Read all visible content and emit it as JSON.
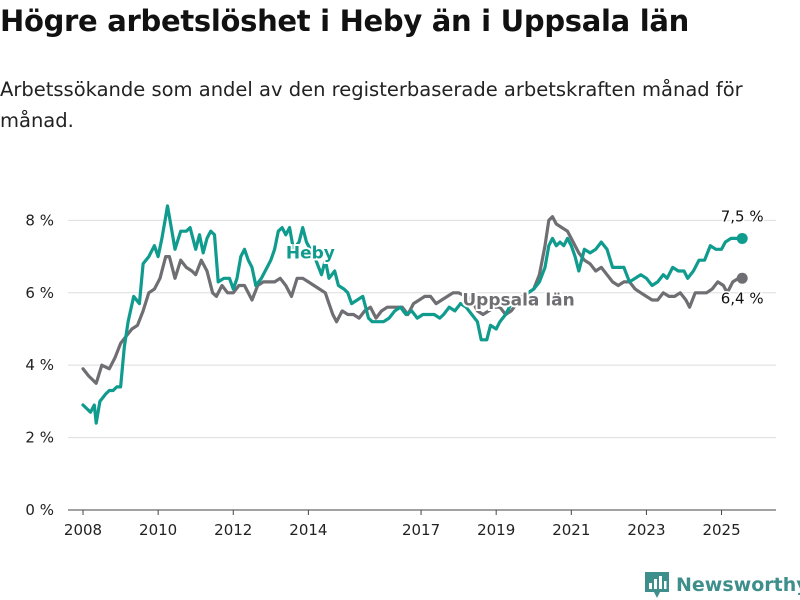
{
  "title": "Högre arbetslöshet i Heby än i Uppsala län",
  "subtitle": "Arbetssökande som andel av den registerbaserade arbetskraften månad för månad.",
  "brand": "Newsworthy",
  "colors": {
    "heby": "#0f9b8e",
    "uppsala": "#6e6e73",
    "grid": "#dddddd",
    "brand": "#3e8f8b"
  },
  "chart_data": {
    "type": "line",
    "ylim": [
      0,
      8.7
    ],
    "xlim": [
      2007.6,
      2026.45
    ],
    "y_ticks": [
      0,
      2,
      4,
      6,
      8
    ],
    "y_tick_labels": [
      "0 %",
      "2 %",
      "4 %",
      "6 %",
      "8 %"
    ],
    "x_ticks": [
      2008,
      2010,
      2012,
      2014,
      2017,
      2019,
      2021,
      2023,
      2025
    ],
    "x_tick_labels": [
      "2008",
      "2010",
      "2012",
      "2014",
      "2017",
      "2019",
      "2021",
      "2023",
      "2025"
    ],
    "series": [
      {
        "key": "heby",
        "name": "Heby",
        "end_label": "7,5 %",
        "points": [
          [
            2008.0,
            2.9
          ],
          [
            2008.1,
            2.8
          ],
          [
            2008.2,
            2.7
          ],
          [
            2008.3,
            2.9
          ],
          [
            2008.35,
            2.4
          ],
          [
            2008.45,
            3.0
          ],
          [
            2008.6,
            3.2
          ],
          [
            2008.7,
            3.3
          ],
          [
            2008.8,
            3.3
          ],
          [
            2008.9,
            3.4
          ],
          [
            2009.0,
            3.4
          ],
          [
            2009.1,
            4.5
          ],
          [
            2009.2,
            5.2
          ],
          [
            2009.35,
            5.9
          ],
          [
            2009.5,
            5.7
          ],
          [
            2009.6,
            6.8
          ],
          [
            2009.75,
            7.0
          ],
          [
            2009.9,
            7.3
          ],
          [
            2010.0,
            7.0
          ],
          [
            2010.1,
            7.5
          ],
          [
            2010.2,
            8.1
          ],
          [
            2010.25,
            8.4
          ],
          [
            2010.35,
            7.8
          ],
          [
            2010.45,
            7.2
          ],
          [
            2010.6,
            7.7
          ],
          [
            2010.75,
            7.7
          ],
          [
            2010.85,
            7.8
          ],
          [
            2011.0,
            7.2
          ],
          [
            2011.1,
            7.6
          ],
          [
            2011.2,
            7.1
          ],
          [
            2011.3,
            7.5
          ],
          [
            2011.4,
            7.7
          ],
          [
            2011.5,
            7.6
          ],
          [
            2011.6,
            6.3
          ],
          [
            2011.75,
            6.4
          ],
          [
            2011.9,
            6.4
          ],
          [
            2012.0,
            6.1
          ],
          [
            2012.1,
            6.4
          ],
          [
            2012.2,
            7.0
          ],
          [
            2012.3,
            7.2
          ],
          [
            2012.4,
            6.9
          ],
          [
            2012.5,
            6.7
          ],
          [
            2012.6,
            6.2
          ],
          [
            2012.75,
            6.4
          ],
          [
            2012.9,
            6.7
          ],
          [
            2013.0,
            6.9
          ],
          [
            2013.1,
            7.2
          ],
          [
            2013.2,
            7.7
          ],
          [
            2013.3,
            7.8
          ],
          [
            2013.4,
            7.6
          ],
          [
            2013.5,
            7.8
          ],
          [
            2013.6,
            7.2
          ],
          [
            2013.75,
            7.4
          ],
          [
            2013.85,
            7.8
          ],
          [
            2013.95,
            7.4
          ],
          [
            2014.05,
            7.2
          ],
          [
            2014.2,
            6.9
          ],
          [
            2014.35,
            6.5
          ],
          [
            2014.45,
            6.9
          ],
          [
            2014.55,
            6.4
          ],
          [
            2014.7,
            6.6
          ],
          [
            2014.8,
            6.2
          ],
          [
            2014.95,
            6.1
          ],
          [
            2015.05,
            6.0
          ],
          [
            2015.15,
            5.7
          ],
          [
            2015.3,
            5.8
          ],
          [
            2015.45,
            5.9
          ],
          [
            2015.6,
            5.3
          ],
          [
            2015.7,
            5.2
          ],
          [
            2015.85,
            5.2
          ],
          [
            2016.0,
            5.2
          ],
          [
            2016.15,
            5.3
          ],
          [
            2016.3,
            5.5
          ],
          [
            2016.45,
            5.6
          ],
          [
            2016.6,
            5.4
          ],
          [
            2016.75,
            5.5
          ],
          [
            2016.9,
            5.3
          ],
          [
            2017.05,
            5.4
          ],
          [
            2017.2,
            5.4
          ],
          [
            2017.35,
            5.4
          ],
          [
            2017.5,
            5.3
          ],
          [
            2017.6,
            5.4
          ],
          [
            2017.75,
            5.6
          ],
          [
            2017.9,
            5.5
          ],
          [
            2018.05,
            5.7
          ],
          [
            2018.2,
            5.6
          ],
          [
            2018.35,
            5.4
          ],
          [
            2018.5,
            5.2
          ],
          [
            2018.6,
            4.7
          ],
          [
            2018.75,
            4.7
          ],
          [
            2018.85,
            5.1
          ],
          [
            2019.0,
            5.0
          ],
          [
            2019.1,
            5.2
          ],
          [
            2019.25,
            5.4
          ],
          [
            2019.4,
            5.7
          ],
          [
            2019.55,
            5.8
          ],
          [
            2019.7,
            5.9
          ],
          [
            2019.85,
            6.0
          ],
          [
            2020.0,
            6.1
          ],
          [
            2020.15,
            6.3
          ],
          [
            2020.3,
            6.7
          ],
          [
            2020.4,
            7.3
          ],
          [
            2020.5,
            7.5
          ],
          [
            2020.6,
            7.3
          ],
          [
            2020.7,
            7.4
          ],
          [
            2020.8,
            7.3
          ],
          [
            2020.9,
            7.5
          ],
          [
            2021.0,
            7.3
          ],
          [
            2021.1,
            7.0
          ],
          [
            2021.2,
            6.6
          ],
          [
            2021.35,
            7.2
          ],
          [
            2021.5,
            7.1
          ],
          [
            2021.65,
            7.2
          ],
          [
            2021.8,
            7.4
          ],
          [
            2021.95,
            7.2
          ],
          [
            2022.1,
            6.7
          ],
          [
            2022.25,
            6.7
          ],
          [
            2022.4,
            6.7
          ],
          [
            2022.55,
            6.3
          ],
          [
            2022.7,
            6.4
          ],
          [
            2022.85,
            6.5
          ],
          [
            2023.0,
            6.4
          ],
          [
            2023.15,
            6.2
          ],
          [
            2023.3,
            6.3
          ],
          [
            2023.45,
            6.5
          ],
          [
            2023.55,
            6.4
          ],
          [
            2023.7,
            6.7
          ],
          [
            2023.85,
            6.6
          ],
          [
            2024.0,
            6.6
          ],
          [
            2024.1,
            6.4
          ],
          [
            2024.25,
            6.6
          ],
          [
            2024.4,
            6.9
          ],
          [
            2024.55,
            6.9
          ],
          [
            2024.7,
            7.3
          ],
          [
            2024.85,
            7.2
          ],
          [
            2025.0,
            7.2
          ],
          [
            2025.1,
            7.4
          ],
          [
            2025.25,
            7.5
          ],
          [
            2025.4,
            7.5
          ],
          [
            2025.55,
            7.5
          ]
        ]
      },
      {
        "key": "uppsala",
        "name": "Uppsala län",
        "end_label": "6,4 %",
        "points": [
          [
            2008.0,
            3.9
          ],
          [
            2008.15,
            3.7
          ],
          [
            2008.35,
            3.5
          ],
          [
            2008.5,
            4.0
          ],
          [
            2008.7,
            3.9
          ],
          [
            2008.85,
            4.2
          ],
          [
            2009.0,
            4.6
          ],
          [
            2009.15,
            4.8
          ],
          [
            2009.3,
            5.0
          ],
          [
            2009.45,
            5.1
          ],
          [
            2009.6,
            5.5
          ],
          [
            2009.75,
            6.0
          ],
          [
            2009.9,
            6.1
          ],
          [
            2010.05,
            6.4
          ],
          [
            2010.2,
            7.0
          ],
          [
            2010.3,
            7.0
          ],
          [
            2010.45,
            6.4
          ],
          [
            2010.6,
            6.9
          ],
          [
            2010.75,
            6.7
          ],
          [
            2010.9,
            6.6
          ],
          [
            2011.0,
            6.5
          ],
          [
            2011.15,
            6.9
          ],
          [
            2011.3,
            6.6
          ],
          [
            2011.45,
            6.0
          ],
          [
            2011.55,
            5.9
          ],
          [
            2011.7,
            6.2
          ],
          [
            2011.85,
            6.0
          ],
          [
            2012.0,
            6.0
          ],
          [
            2012.15,
            6.2
          ],
          [
            2012.3,
            6.2
          ],
          [
            2012.5,
            5.8
          ],
          [
            2012.65,
            6.2
          ],
          [
            2012.8,
            6.3
          ],
          [
            2012.95,
            6.3
          ],
          [
            2013.1,
            6.3
          ],
          [
            2013.25,
            6.4
          ],
          [
            2013.4,
            6.2
          ],
          [
            2013.55,
            5.9
          ],
          [
            2013.7,
            6.4
          ],
          [
            2013.85,
            6.4
          ],
          [
            2014.0,
            6.3
          ],
          [
            2014.15,
            6.2
          ],
          [
            2014.3,
            6.1
          ],
          [
            2014.45,
            6.0
          ],
          [
            2014.55,
            5.7
          ],
          [
            2014.65,
            5.4
          ],
          [
            2014.75,
            5.2
          ],
          [
            2014.9,
            5.5
          ],
          [
            2015.05,
            5.4
          ],
          [
            2015.2,
            5.4
          ],
          [
            2015.35,
            5.3
          ],
          [
            2015.5,
            5.5
          ],
          [
            2015.65,
            5.6
          ],
          [
            2015.8,
            5.3
          ],
          [
            2015.95,
            5.5
          ],
          [
            2016.1,
            5.6
          ],
          [
            2016.3,
            5.6
          ],
          [
            2016.5,
            5.6
          ],
          [
            2016.65,
            5.4
          ],
          [
            2016.8,
            5.7
          ],
          [
            2016.95,
            5.8
          ],
          [
            2017.1,
            5.9
          ],
          [
            2017.25,
            5.9
          ],
          [
            2017.4,
            5.7
          ],
          [
            2017.55,
            5.8
          ],
          [
            2017.7,
            5.9
          ],
          [
            2017.85,
            6.0
          ],
          [
            2018.0,
            6.0
          ],
          [
            2018.2,
            5.9
          ],
          [
            2018.35,
            5.8
          ],
          [
            2018.5,
            5.5
          ],
          [
            2018.65,
            5.4
          ],
          [
            2018.8,
            5.5
          ],
          [
            2018.95,
            5.6
          ],
          [
            2019.1,
            5.6
          ],
          [
            2019.25,
            5.4
          ],
          [
            2019.4,
            5.5
          ],
          [
            2019.55,
            5.7
          ],
          [
            2019.7,
            5.9
          ],
          [
            2019.85,
            6.0
          ],
          [
            2020.0,
            6.1
          ],
          [
            2020.15,
            6.5
          ],
          [
            2020.3,
            7.3
          ],
          [
            2020.4,
            8.0
          ],
          [
            2020.5,
            8.1
          ],
          [
            2020.6,
            7.9
          ],
          [
            2020.75,
            7.8
          ],
          [
            2020.9,
            7.7
          ],
          [
            2021.05,
            7.4
          ],
          [
            2021.2,
            7.1
          ],
          [
            2021.35,
            6.9
          ],
          [
            2021.5,
            6.8
          ],
          [
            2021.65,
            6.6
          ],
          [
            2021.8,
            6.7
          ],
          [
            2021.95,
            6.5
          ],
          [
            2022.1,
            6.3
          ],
          [
            2022.25,
            6.2
          ],
          [
            2022.4,
            6.3
          ],
          [
            2022.55,
            6.3
          ],
          [
            2022.7,
            6.1
          ],
          [
            2022.85,
            6.0
          ],
          [
            2023.0,
            5.9
          ],
          [
            2023.15,
            5.8
          ],
          [
            2023.3,
            5.8
          ],
          [
            2023.45,
            6.0
          ],
          [
            2023.6,
            5.9
          ],
          [
            2023.75,
            5.9
          ],
          [
            2023.9,
            6.0
          ],
          [
            2024.05,
            5.8
          ],
          [
            2024.15,
            5.6
          ],
          [
            2024.3,
            6.0
          ],
          [
            2024.45,
            6.0
          ],
          [
            2024.6,
            6.0
          ],
          [
            2024.75,
            6.1
          ],
          [
            2024.9,
            6.3
          ],
          [
            2025.05,
            6.2
          ],
          [
            2025.15,
            6.0
          ],
          [
            2025.3,
            6.3
          ],
          [
            2025.45,
            6.4
          ],
          [
            2025.55,
            6.4
          ]
        ]
      }
    ]
  }
}
